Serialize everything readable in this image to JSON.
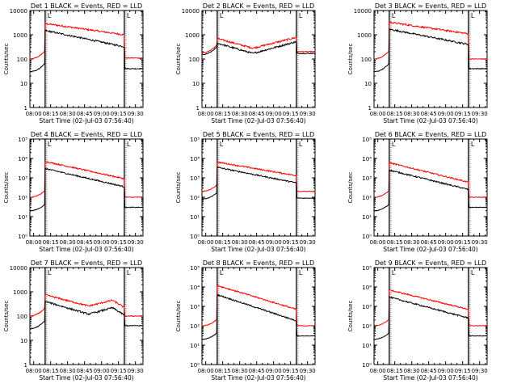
{
  "figure": {
    "xlabel": "Start Time (02-Jul-03 07:56:40)",
    "ylabel": "Counts/sec"
  },
  "chart_data": [
    {
      "type": "line",
      "title": "Det 1  BLACK = Events, RED = LLD",
      "scale": "log",
      "ylim": [
        1,
        10000
      ],
      "yticks": [
        "1",
        "10",
        "100",
        "1000",
        "10000"
      ],
      "xticks": [
        "08:00",
        "08:15",
        "08:30",
        "08:45",
        "09:00",
        "09:15",
        "09:30"
      ],
      "markers": [
        13.5,
        83.5
      ],
      "marker_label": "L",
      "series": [
        {
          "name": "LLD",
          "color": "#ff0000",
          "shape": "flare",
          "start": 100,
          "peak": 2900,
          "end": 1000,
          "after": 110
        },
        {
          "name": "Events",
          "color": "#000000",
          "shape": "flare",
          "start": 30,
          "peak": 1500,
          "end": 320,
          "after": 40
        }
      ]
    },
    {
      "type": "line",
      "title": "Det 2  BLACK = Events, RED = LLD",
      "scale": "log",
      "ylim": [
        1,
        10000
      ],
      "yticks": [
        "1",
        "10",
        "100",
        "1000",
        "10000"
      ],
      "xticks": [
        "08:00",
        "08:15",
        "08:30",
        "08:45",
        "09:00",
        "09:15",
        "09:30"
      ],
      "markers": [
        13.5,
        83.5
      ],
      "marker_label": "L",
      "series": [
        {
          "name": "LLD",
          "color": "#ff0000",
          "shape": "arch",
          "start": 180,
          "peak": 700,
          "mid": 280,
          "end": 780,
          "after": 200
        },
        {
          "name": "Events",
          "color": "#000000",
          "shape": "arch",
          "start": 150,
          "peak": 450,
          "mid": 170,
          "end": 520,
          "after": 170
        }
      ]
    },
    {
      "type": "line",
      "title": "Det 3  BLACK = Events, RED = LLD",
      "scale": "log",
      "ylim": [
        1,
        10000
      ],
      "yticks": [
        "1",
        "10",
        "100",
        "1000",
        "10000"
      ],
      "xticks": [
        "08:00",
        "08:15",
        "08:30",
        "08:45",
        "09:00",
        "09:15",
        "09:30"
      ],
      "markers": [
        13.5,
        83.5
      ],
      "marker_label": "L",
      "series": [
        {
          "name": "LLD",
          "color": "#ff0000",
          "shape": "flare",
          "start": 100,
          "peak": 3300,
          "end": 1100,
          "after": 100
        },
        {
          "name": "Events",
          "color": "#000000",
          "shape": "flare",
          "start": 30,
          "peak": 1700,
          "end": 400,
          "after": 40
        }
      ]
    },
    {
      "type": "line",
      "title": "Det 4  BLACK = Events, RED = LLD",
      "scale": "log",
      "ylim": [
        1,
        100000
      ],
      "yticks": [
        "10⁰",
        "10¹",
        "10²",
        "10³",
        "10⁴",
        "10⁵"
      ],
      "xticks": [
        "08:00",
        "08:15",
        "08:30",
        "08:45",
        "09:00",
        "09:15",
        "09:30"
      ],
      "markers": [
        13.5,
        83.5
      ],
      "marker_label": "L",
      "series": [
        {
          "name": "LLD",
          "color": "#ff0000",
          "shape": "flare",
          "start": 100,
          "peak": 7000,
          "end": 900,
          "after": 100
        },
        {
          "name": "Events",
          "color": "#000000",
          "shape": "flare",
          "start": 20,
          "peak": 3000,
          "end": 350,
          "after": 30
        }
      ]
    },
    {
      "type": "line",
      "title": "Det 5  BLACK = Events, RED = LLD",
      "scale": "log",
      "ylim": [
        1,
        100000
      ],
      "yticks": [
        "10⁰",
        "10¹",
        "10²",
        "10³",
        "10⁴",
        "10⁵"
      ],
      "xticks": [
        "08:00",
        "08:15",
        "08:30",
        "08:45",
        "09:00",
        "09:15",
        "09:30"
      ],
      "markers": [
        13.5,
        83.5
      ],
      "marker_label": "L",
      "series": [
        {
          "name": "LLD",
          "color": "#ff0000",
          "shape": "flare",
          "start": 200,
          "peak": 6500,
          "end": 1300,
          "after": 200
        },
        {
          "name": "Events",
          "color": "#000000",
          "shape": "flare",
          "start": 80,
          "peak": 3500,
          "end": 550,
          "after": 90
        }
      ]
    },
    {
      "type": "line",
      "title": "Det 6  BLACK = Events, RED = LLD",
      "scale": "log",
      "ylim": [
        1,
        100000
      ],
      "yticks": [
        "10⁰",
        "10¹",
        "10²",
        "10³",
        "10⁴",
        "10⁵"
      ],
      "xticks": [
        "08:00",
        "08:15",
        "08:30",
        "08:45",
        "09:00",
        "09:15",
        "09:30"
      ],
      "markers": [
        13.5,
        83.5
      ],
      "marker_label": "L",
      "series": [
        {
          "name": "LLD",
          "color": "#ff0000",
          "shape": "flare",
          "start": 100,
          "peak": 6000,
          "end": 600,
          "after": 100
        },
        {
          "name": "Events",
          "color": "#000000",
          "shape": "flare",
          "start": 20,
          "peak": 2500,
          "end": 250,
          "after": 30
        }
      ]
    },
    {
      "type": "line",
      "title": "Det 7  BLACK = Events, RED = LLD",
      "scale": "log",
      "ylim": [
        1,
        10000
      ],
      "yticks": [
        "1",
        "10",
        "100",
        "1000",
        "10000"
      ],
      "xticks": [
        "08:00",
        "08:15",
        "08:30",
        "08:45",
        "09:00",
        "09:15",
        "09:30"
      ],
      "markers": [
        13.5,
        83.5
      ],
      "marker_label": "L",
      "series": [
        {
          "name": "LLD",
          "color": "#ff0000",
          "shape": "hump",
          "start": 100,
          "peak": 750,
          "mid": 260,
          "end": 450,
          "after": 100
        },
        {
          "name": "Events",
          "color": "#000000",
          "shape": "hump",
          "start": 30,
          "peak": 400,
          "mid": 120,
          "end": 220,
          "after": 40
        }
      ]
    },
    {
      "type": "line",
      "title": "Det 8  BLACK = Events, RED = LLD",
      "scale": "log",
      "ylim": [
        1,
        100000
      ],
      "yticks": [
        "10⁰",
        "10¹",
        "10²",
        "10³",
        "10⁴",
        "10⁵"
      ],
      "xticks": [
        "08:00",
        "08:15",
        "08:30",
        "08:45",
        "09:00",
        "09:15",
        "09:30"
      ],
      "markers": [
        13.5,
        83.5
      ],
      "marker_label": "L",
      "series": [
        {
          "name": "LLD",
          "color": "#ff0000",
          "shape": "flare",
          "start": 100,
          "peak": 12000,
          "end": 700,
          "after": 100
        },
        {
          "name": "Events",
          "color": "#000000",
          "shape": "flare",
          "start": 20,
          "peak": 4000,
          "end": 180,
          "after": 30
        }
      ]
    },
    {
      "type": "line",
      "title": "Det 9  BLACK = Events, RED = LLD",
      "scale": "log",
      "ylim": [
        1,
        100000
      ],
      "yticks": [
        "10⁰",
        "10¹",
        "10²",
        "10³",
        "10⁴",
        "10⁵"
      ],
      "xticks": [
        "08:00",
        "08:15",
        "08:30",
        "08:45",
        "09:00",
        "09:15",
        "09:30"
      ],
      "markers": [
        13.5,
        83.5
      ],
      "marker_label": "L",
      "series": [
        {
          "name": "LLD",
          "color": "#ff0000",
          "shape": "flare",
          "start": 100,
          "peak": 7000,
          "end": 700,
          "after": 100
        },
        {
          "name": "Events",
          "color": "#000000",
          "shape": "flare",
          "start": 20,
          "peak": 3000,
          "end": 250,
          "after": 30
        }
      ]
    }
  ]
}
